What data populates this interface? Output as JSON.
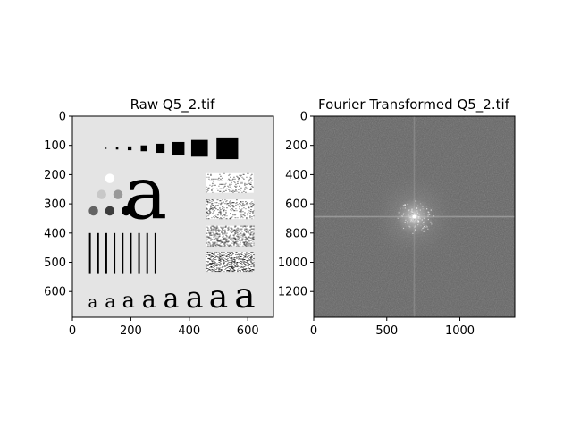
{
  "chart_data": [
    {
      "type": "image",
      "title": "Raw Q5_2.tif",
      "xlim": [
        0,
        688
      ],
      "ylim": [
        688,
        0
      ],
      "xticks": [
        0,
        200,
        400,
        600
      ],
      "yticks": [
        0,
        100,
        200,
        300,
        400,
        500,
        600
      ],
      "background": "#e4e4e4",
      "squares": [
        {
          "x": 115,
          "y": 110,
          "size": 4
        },
        {
          "x": 153,
          "y": 110,
          "size": 8
        },
        {
          "x": 196,
          "y": 110,
          "size": 13
        },
        {
          "x": 244,
          "y": 110,
          "size": 20
        },
        {
          "x": 300,
          "y": 110,
          "size": 31
        },
        {
          "x": 362,
          "y": 110,
          "size": 43
        },
        {
          "x": 435,
          "y": 110,
          "size": 57
        },
        {
          "x": 530,
          "y": 110,
          "size": 74
        }
      ],
      "circles": [
        {
          "x": 128,
          "y": 213,
          "r": 16,
          "color": "#ffffff"
        },
        {
          "x": 100,
          "y": 268,
          "r": 16,
          "color": "#c8c8c8"
        },
        {
          "x": 156,
          "y": 268,
          "r": 16,
          "color": "#999999"
        },
        {
          "x": 72,
          "y": 324,
          "r": 16,
          "color": "#646464"
        },
        {
          "x": 128,
          "y": 324,
          "r": 16,
          "color": "#3c3c3c"
        },
        {
          "x": 184,
          "y": 324,
          "r": 16,
          "color": "#000000"
        }
      ],
      "large_letter": {
        "text": "a",
        "x": 250,
        "y": 350,
        "size": 250
      },
      "bars": {
        "x_start": 57,
        "spacing": 28,
        "count": 9,
        "y_top": 400,
        "y_bottom": 540,
        "width": 6
      },
      "noise_rects": [
        {
          "y0": 195,
          "y1": 262
        },
        {
          "y0": 285,
          "y1": 352
        },
        {
          "y0": 375,
          "y1": 443
        },
        {
          "y0": 465,
          "y1": 532
        }
      ],
      "noise_x": [
        457,
        620
      ],
      "small_letters": [
        {
          "x": 70,
          "size": 55
        },
        {
          "x": 130,
          "size": 64
        },
        {
          "x": 192,
          "size": 73
        },
        {
          "x": 262,
          "size": 82
        },
        {
          "x": 338,
          "size": 91
        },
        {
          "x": 418,
          "size": 100
        },
        {
          "x": 500,
          "size": 110
        },
        {
          "x": 590,
          "size": 120
        }
      ],
      "small_letter_text": "a",
      "small_letter_baseline": 655
    },
    {
      "type": "image",
      "title": "Fourier Transformed Q5_2.tif",
      "xlim": [
        0,
        1376
      ],
      "ylim": [
        1376,
        0
      ],
      "xticks": [
        0,
        500,
        1000
      ],
      "yticks": [
        0,
        200,
        400,
        600,
        800,
        1000,
        1200
      ],
      "center": [
        688,
        688
      ]
    }
  ]
}
